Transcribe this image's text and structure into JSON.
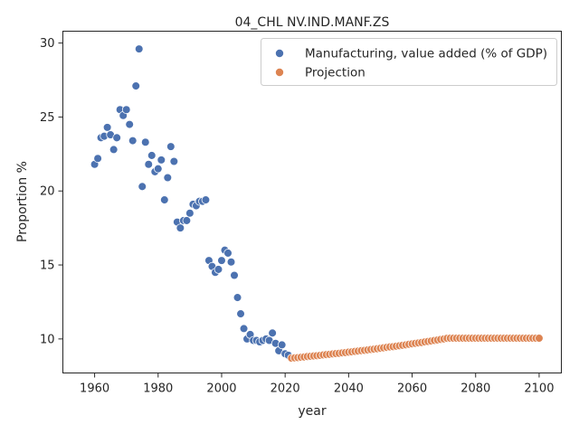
{
  "chart_data": {
    "type": "scatter",
    "title": "04_CHL NV.IND.MANF.ZS",
    "xlabel": "year",
    "ylabel": "Proportion %",
    "xlim": [
      1950,
      2107
    ],
    "ylim": [
      7.7,
      30.8
    ],
    "xticks": [
      1960,
      1980,
      2000,
      2020,
      2040,
      2060,
      2080,
      2100
    ],
    "yticks": [
      10,
      15,
      20,
      25,
      30
    ],
    "grid": false,
    "legend_position": "top-right",
    "series": [
      {
        "name": "Manufacturing, value added (% of GDP)",
        "color": "#4c72b0",
        "x": [
          1960,
          1961,
          1962,
          1963,
          1964,
          1965,
          1966,
          1967,
          1968,
          1969,
          1970,
          1971,
          1972,
          1973,
          1974,
          1975,
          1976,
          1977,
          1978,
          1979,
          1980,
          1981,
          1982,
          1983,
          1984,
          1985,
          1986,
          1987,
          1988,
          1989,
          1990,
          1991,
          1992,
          1993,
          1994,
          1995,
          1996,
          1997,
          1998,
          1999,
          2000,
          2001,
          2002,
          2003,
          2004,
          2005,
          2006,
          2007,
          2008,
          2009,
          2010,
          2011,
          2012,
          2013,
          2014,
          2015,
          2016,
          2017,
          2018,
          2019,
          2020,
          2021
        ],
        "y": [
          21.8,
          22.2,
          23.6,
          23.7,
          24.3,
          23.8,
          22.8,
          23.6,
          25.5,
          25.1,
          25.5,
          24.5,
          23.4,
          27.1,
          29.6,
          20.3,
          23.3,
          21.8,
          22.4,
          21.3,
          21.5,
          22.1,
          19.4,
          20.9,
          23.0,
          22.0,
          17.9,
          17.5,
          18.0,
          18.0,
          18.5,
          19.1,
          19.0,
          19.3,
          19.3,
          19.4,
          15.3,
          14.9,
          14.5,
          14.7,
          15.3,
          16.0,
          15.8,
          15.2,
          14.3,
          12.8,
          11.7,
          10.7,
          10.0,
          10.3,
          9.9,
          9.9,
          9.8,
          9.9,
          10.0,
          9.9,
          10.4,
          9.7,
          9.2,
          9.6,
          9.0,
          8.9
        ]
      },
      {
        "name": "Projection",
        "color": "#dd8452",
        "x_start": 2022,
        "x_step": 1,
        "y": [
          8.7,
          8.72,
          8.74,
          8.76,
          8.78,
          8.81,
          8.83,
          8.85,
          8.87,
          8.89,
          8.92,
          8.94,
          8.96,
          8.99,
          9.01,
          9.03,
          9.06,
          9.08,
          9.11,
          9.13,
          9.16,
          9.18,
          9.21,
          9.23,
          9.26,
          9.29,
          9.31,
          9.34,
          9.37,
          9.4,
          9.43,
          9.46,
          9.48,
          9.51,
          9.54,
          9.57,
          9.6,
          9.64,
          9.67,
          9.7,
          9.73,
          9.76,
          9.8,
          9.83,
          9.86,
          9.9,
          9.93,
          9.97,
          10.0,
          10.04,
          10.05,
          10.05,
          10.05,
          10.05,
          10.05,
          10.05,
          10.05,
          10.05,
          10.05,
          10.05,
          10.05,
          10.05,
          10.05,
          10.05,
          10.05,
          10.05,
          10.05,
          10.05,
          10.05,
          10.05,
          10.05,
          10.05,
          10.05,
          10.05,
          10.05,
          10.05,
          10.05,
          10.05,
          10.05
        ]
      }
    ]
  }
}
